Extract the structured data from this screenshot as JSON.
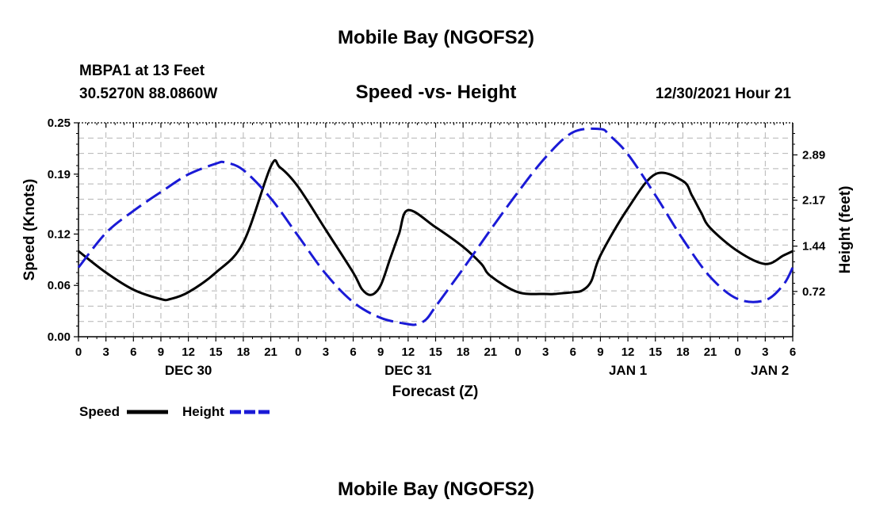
{
  "header": {
    "title": "Mobile Bay (NGOFS2)",
    "station": "MBPA1 at 13 Feet",
    "coords": "30.5270N  88.0860W",
    "subtitle": "Speed -vs- Height",
    "datetime": "12/30/2021 Hour 21"
  },
  "footer": {
    "title": "Mobile Bay (NGOFS2)"
  },
  "colors": {
    "speed": "#000000",
    "height": "#1a1ad6",
    "grid": "#b4b4b4"
  },
  "chart_data": {
    "type": "line",
    "title": "Speed -vs- Height",
    "xlabel": "Forecast (Z)",
    "ylabel": "Speed (Knots)",
    "y2label": "Height (feet)",
    "x_range_hours": [
      0,
      78
    ],
    "x_tick_labels": [
      "0",
      "3",
      "6",
      "9",
      "12",
      "15",
      "18",
      "21",
      "0",
      "3",
      "6",
      "9",
      "12",
      "15",
      "18",
      "21",
      "0",
      "3",
      "6",
      "9",
      "12",
      "15",
      "18",
      "21",
      "0",
      "3",
      "6"
    ],
    "date_labels": [
      {
        "hour": 12,
        "label": "DEC 30"
      },
      {
        "hour": 36,
        "label": "DEC 31"
      },
      {
        "hour": 60,
        "label": "JAN 1"
      },
      {
        "hour": 75.5,
        "label": "JAN 2"
      }
    ],
    "ylim": [
      0,
      0.25
    ],
    "yticks": [
      0.0,
      0.06,
      0.12,
      0.19,
      0.25
    ],
    "ytick_labels": [
      "0.00",
      "0.06",
      "0.12",
      "0.19",
      "0.25"
    ],
    "y2lim": [
      0,
      3.4
    ],
    "y2ticks": [
      0.72,
      1.44,
      2.17,
      2.89
    ],
    "y2tick_labels": [
      "0.72",
      "1.44",
      "2.17",
      "2.89"
    ],
    "legend": [
      {
        "name": "Speed",
        "style": "solid"
      },
      {
        "name": "Height",
        "style": "dashed"
      }
    ],
    "series": [
      {
        "name": "Speed",
        "axis": "left",
        "style": "solid",
        "x": [
          0,
          3,
          6,
          9,
          10,
          12,
          15,
          18,
          21,
          22,
          24,
          27,
          30,
          31,
          32,
          33,
          34,
          35,
          36,
          39,
          42,
          44,
          45,
          48,
          51,
          52,
          53,
          54,
          55,
          56,
          57,
          60,
          63,
          66,
          67,
          68,
          69,
          72,
          75,
          77,
          78
        ],
        "y": [
          0.1,
          0.075,
          0.055,
          0.044,
          0.044,
          0.052,
          0.075,
          0.11,
          0.199,
          0.198,
          0.175,
          0.125,
          0.075,
          0.055,
          0.049,
          0.06,
          0.09,
          0.12,
          0.148,
          0.128,
          0.105,
          0.085,
          0.071,
          0.052,
          0.05,
          0.05,
          0.051,
          0.052,
          0.054,
          0.065,
          0.095,
          0.15,
          0.19,
          0.182,
          0.165,
          0.145,
          0.127,
          0.1,
          0.085,
          0.095,
          0.1
        ]
      },
      {
        "name": "Height",
        "axis": "right",
        "style": "dashed",
        "x": [
          0,
          3,
          6,
          9,
          12,
          15,
          16,
          18,
          21,
          24,
          27,
          30,
          33,
          36,
          37,
          38,
          39,
          42,
          45,
          48,
          51,
          54,
          57,
          58,
          60,
          63,
          66,
          69,
          72,
          75,
          77,
          78
        ],
        "y": [
          1.1,
          1.65,
          2.0,
          2.3,
          2.58,
          2.75,
          2.77,
          2.65,
          2.2,
          1.6,
          1.0,
          0.55,
          0.3,
          0.2,
          0.2,
          0.28,
          0.48,
          1.08,
          1.7,
          2.3,
          2.85,
          3.25,
          3.3,
          3.2,
          2.9,
          2.25,
          1.55,
          0.95,
          0.6,
          0.58,
          0.83,
          1.1
        ]
      }
    ]
  }
}
